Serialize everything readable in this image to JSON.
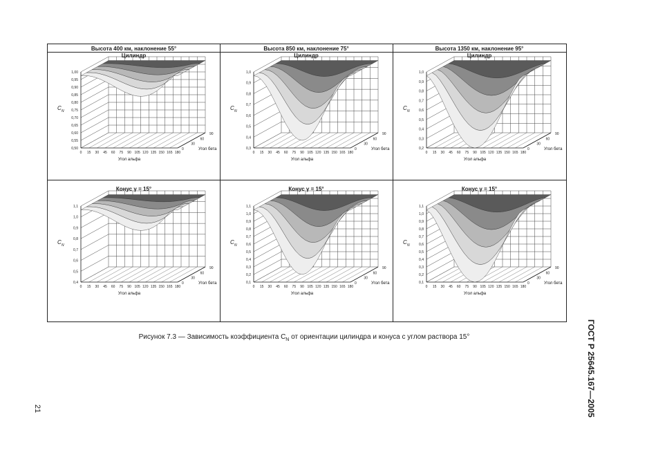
{
  "page": {
    "page_number": "21",
    "standard_title": "ГОСТ Р 25645.167—2005",
    "caption": "Рисунок 7.3 — Зависимость коэффициента C",
    "caption_sub": "N",
    "caption_rest": " от ориентации цилиндра и конуса с углом раствора 15°"
  },
  "columns": [
    {
      "header": "Высота 400 км, наклонение 55°"
    },
    {
      "header": "Высота 850 км, наклонение 75°"
    },
    {
      "header": "Высота 1350 км, наклонение 95°"
    }
  ],
  "rows": [
    {
      "title": "Цилиндр"
    },
    {
      "title": "Конус γ = 15°"
    }
  ],
  "axis": {
    "y_label": "C",
    "y_label_sub": "N",
    "x_label": "Угол альфа",
    "z_label": "Угол бета",
    "x_ticks": [
      "0",
      "15",
      "30",
      "45",
      "60",
      "75",
      "90",
      "105",
      "120",
      "135",
      "150",
      "165",
      "180"
    ],
    "z_ticks": [
      "0",
      "30",
      "60",
      "90"
    ]
  },
  "chart_data": [
    {
      "type": "surface",
      "row": "Цилиндр",
      "column": "Высота 400 км, наклонение 55°",
      "y_ticks": [
        "1,00",
        "0,95",
        "0,90",
        "0,85",
        "0,80",
        "0,75",
        "0,70",
        "0,65",
        "0,60",
        "0,55",
        "0,50"
      ],
      "ylim": [
        0.5,
        1.0
      ]
    },
    {
      "type": "surface",
      "row": "Цилиндр",
      "column": "Высота 850 км, наклонение 75°",
      "y_ticks": [
        "1,0",
        "0,9",
        "0,8",
        "0,7",
        "0,6",
        "0,5",
        "0,4",
        "0,3"
      ],
      "ylim": [
        0.3,
        1.0
      ]
    },
    {
      "type": "surface",
      "row": "Цилиндр",
      "column": "Высота 1350 км, наклонение 95°",
      "y_ticks": [
        "1,0",
        "0,9",
        "0,8",
        "0,7",
        "0,6",
        "0,5",
        "0,4",
        "0,3",
        "0,2"
      ],
      "ylim": [
        0.2,
        1.0
      ]
    },
    {
      "type": "surface",
      "row": "Конус γ = 15°",
      "column": "Высота 400 км, наклонение 55°",
      "y_ticks": [
        "1,1",
        "1,0",
        "0,9",
        "0,8",
        "0,7",
        "0,6",
        "0,5",
        "0,4"
      ],
      "ylim": [
        0.4,
        1.1
      ]
    },
    {
      "type": "surface",
      "row": "Конус γ = 15°",
      "column": "Высота 850 км, наклонение 75°",
      "y_ticks": [
        "1,1",
        "1,0",
        "0,9",
        "0,8",
        "0,7",
        "0,6",
        "0,5",
        "0,4",
        "0,3",
        "0,2",
        "0,1"
      ],
      "ylim": [
        0.1,
        1.1
      ]
    },
    {
      "type": "surface",
      "row": "Конус γ = 15°",
      "column": "Высота 1350 км, наклонение 95°",
      "y_ticks": [
        "1,1",
        "1,0",
        "0,9",
        "0,8",
        "0,7",
        "0,6",
        "0,5",
        "0,4",
        "0,3",
        "0,2",
        "0,1"
      ],
      "ylim": [
        0.1,
        1.1
      ]
    }
  ]
}
